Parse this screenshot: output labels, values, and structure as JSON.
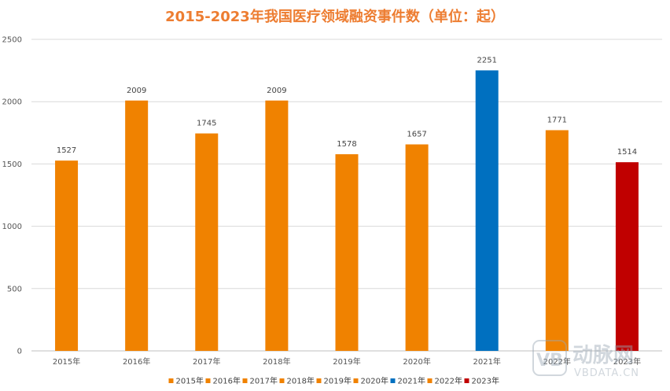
{
  "chart_data": {
    "type": "bar",
    "title": "2015-2023年我国医疗领域融资事件数（单位：起）",
    "categories": [
      "2015年",
      "2016年",
      "2017年",
      "2018年",
      "2019年",
      "2020年",
      "2021年",
      "2022年",
      "2023年"
    ],
    "series": [
      {
        "name": "2015年",
        "values": [
          1527,
          null,
          null,
          null,
          null,
          null,
          null,
          null,
          null
        ],
        "color": "#F08200"
      },
      {
        "name": "2016年",
        "values": [
          null,
          2009,
          null,
          null,
          null,
          null,
          null,
          null,
          null
        ],
        "color": "#F08200"
      },
      {
        "name": "2017年",
        "values": [
          null,
          null,
          1745,
          null,
          null,
          null,
          null,
          null,
          null
        ],
        "color": "#F08200"
      },
      {
        "name": "2018年",
        "values": [
          null,
          null,
          null,
          2009,
          null,
          null,
          null,
          null,
          null
        ],
        "color": "#F08200"
      },
      {
        "name": "2019年",
        "values": [
          null,
          null,
          null,
          null,
          1578,
          null,
          null,
          null,
          null
        ],
        "color": "#F08200"
      },
      {
        "name": "2020年",
        "values": [
          null,
          null,
          null,
          null,
          null,
          1657,
          null,
          null,
          null
        ],
        "color": "#F08200"
      },
      {
        "name": "2021年",
        "values": [
          null,
          null,
          null,
          null,
          null,
          null,
          2251,
          null,
          null
        ],
        "color": "#0070C0"
      },
      {
        "name": "2022年",
        "values": [
          null,
          null,
          null,
          null,
          null,
          null,
          null,
          1771,
          null
        ],
        "color": "#F08200"
      },
      {
        "name": "2023年",
        "values": [
          null,
          null,
          null,
          null,
          null,
          null,
          null,
          null,
          1514
        ],
        "color": "#C00000"
      }
    ],
    "ylim": [
      0,
      2500
    ],
    "yticks": [
      "0",
      "500",
      "1000",
      "1500",
      "2000",
      "2500"
    ],
    "grid": true,
    "legend_position": "bottom",
    "title_color": "#ED7D31"
  },
  "watermark": {
    "logo": "VB",
    "cn": "动脉网",
    "en": "VBDATA.CN"
  }
}
